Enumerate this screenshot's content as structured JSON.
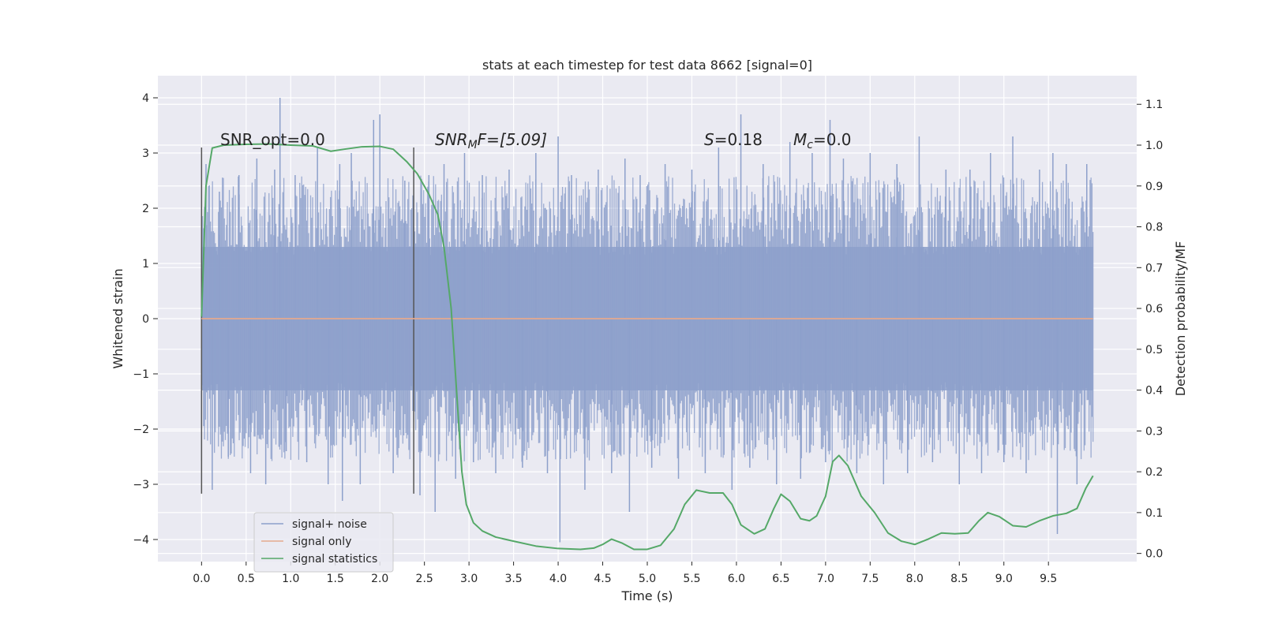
{
  "chart_data": {
    "type": "line",
    "title": "stats at each timestep for test data 8662 [signal=0]",
    "xlabel": "Time (s)",
    "ylabel": "Whitened strain",
    "y2label": "Detection probability/MF",
    "xlim": [
      -0.49,
      10.49
    ],
    "ylim": [
      -4.4,
      4.4
    ],
    "y2lim": [
      -0.02,
      1.17
    ],
    "x_ticks": [
      0.0,
      0.5,
      1.0,
      1.5,
      2.0,
      2.5,
      3.0,
      3.5,
      4.0,
      4.5,
      5.0,
      5.5,
      6.0,
      6.5,
      7.0,
      7.5,
      8.0,
      8.5,
      9.0,
      9.5
    ],
    "x_tick_labels": [
      "0.0",
      "0.5",
      "1.0",
      "1.5",
      "2.0",
      "2.5",
      "3.0",
      "3.5",
      "4.0",
      "4.5",
      "5.0",
      "5.5",
      "6.0",
      "6.5",
      "7.0",
      "7.5",
      "8.0",
      "8.5",
      "9.0",
      "9.5"
    ],
    "y_ticks": [
      4,
      3,
      2,
      1,
      0,
      -1,
      -2,
      -3,
      -4
    ],
    "y_tick_labels": [
      "4",
      "3",
      "2",
      "1",
      "0",
      "−1",
      "−2",
      "−3",
      "−4"
    ],
    "y2_ticks": [
      1.1,
      1.0,
      0.9,
      0.8,
      0.7,
      0.6,
      0.5,
      0.4,
      0.3,
      0.2,
      0.1,
      0.0
    ],
    "y2_tick_labels": [
      "1.1",
      "1.0",
      "0.9",
      "0.8",
      "0.7",
      "0.6",
      "0.5",
      "0.4",
      "0.3",
      "0.2",
      "0.1",
      "0.0"
    ],
    "grid": true,
    "legend_position": "lower-left",
    "annotations": {
      "snr_opt": "SNR_opt=0.0",
      "snr_mf_main": "SNR",
      "snr_mf_sub": "M",
      "snr_mf_rest": "F=[5.09]",
      "s_var": "S",
      "s_rest": "=0.18",
      "mc_var": "M",
      "mc_sub": "c",
      "mc_rest": "=0.0"
    },
    "vertical_markers": [
      0.0,
      2.38
    ],
    "noise_envelope": {
      "x_range": [
        0.0,
        10.0
      ],
      "typical_range": [
        -1.3,
        1.3
      ],
      "max": 4.0,
      "min": -4.05
    },
    "series": [
      {
        "name": "signal+ noise",
        "color": "#8da0cb",
        "axis": "left",
        "spikes": [
          [
            0.05,
            2.8
          ],
          [
            0.12,
            -3.1
          ],
          [
            0.2,
            2.3
          ],
          [
            0.3,
            -2.5
          ],
          [
            0.42,
            2.6
          ],
          [
            0.55,
            -2.8
          ],
          [
            0.62,
            2.9
          ],
          [
            0.72,
            -3.0
          ],
          [
            0.82,
            2.7
          ],
          [
            0.88,
            4.0
          ],
          [
            0.95,
            -2.4
          ],
          [
            1.05,
            2.6
          ],
          [
            1.18,
            -2.6
          ],
          [
            1.3,
            3.1
          ],
          [
            1.42,
            -3.0
          ],
          [
            1.55,
            2.8
          ],
          [
            1.58,
            -3.3
          ],
          [
            1.68,
            3.0
          ],
          [
            1.78,
            -3.0
          ],
          [
            1.93,
            3.6
          ],
          [
            2.0,
            3.7
          ],
          [
            2.15,
            -2.8
          ],
          [
            2.28,
            2.5
          ],
          [
            2.45,
            -3.2
          ],
          [
            2.55,
            2.6
          ],
          [
            2.62,
            -3.5
          ],
          [
            2.72,
            2.8
          ],
          [
            2.85,
            -2.9
          ],
          [
            2.95,
            3.0
          ],
          [
            3.05,
            -2.6
          ],
          [
            3.15,
            2.6
          ],
          [
            3.3,
            -2.8
          ],
          [
            3.45,
            2.7
          ],
          [
            3.6,
            -2.7
          ],
          [
            3.75,
            3.0
          ],
          [
            3.88,
            -2.8
          ],
          [
            4.0,
            3.3
          ],
          [
            4.02,
            -4.05
          ],
          [
            4.15,
            2.6
          ],
          [
            4.3,
            -3.1
          ],
          [
            4.45,
            2.7
          ],
          [
            4.6,
            -2.8
          ],
          [
            4.75,
            2.9
          ],
          [
            4.8,
            -3.5
          ],
          [
            4.92,
            2.6
          ],
          [
            5.05,
            -2.7
          ],
          [
            5.2,
            2.8
          ],
          [
            5.35,
            -2.9
          ],
          [
            5.5,
            2.7
          ],
          [
            5.65,
            -2.8
          ],
          [
            5.8,
            3.1
          ],
          [
            5.95,
            -3.1
          ],
          [
            6.05,
            3.7
          ],
          [
            6.15,
            -2.7
          ],
          [
            6.3,
            2.8
          ],
          [
            6.45,
            -3.0
          ],
          [
            6.6,
            3.2
          ],
          [
            6.72,
            -2.9
          ],
          [
            6.85,
            3.0
          ],
          [
            7.0,
            -2.6
          ],
          [
            7.05,
            3.6
          ],
          [
            7.2,
            2.9
          ],
          [
            7.35,
            -2.8
          ],
          [
            7.5,
            3.0
          ],
          [
            7.65,
            -3.0
          ],
          [
            7.8,
            2.8
          ],
          [
            7.92,
            -2.8
          ],
          [
            8.05,
            3.3
          ],
          [
            8.2,
            -2.6
          ],
          [
            8.35,
            2.7
          ],
          [
            8.5,
            -3.0
          ],
          [
            8.62,
            2.7
          ],
          [
            8.75,
            -2.8
          ],
          [
            8.85,
            3.0
          ],
          [
            9.0,
            -2.6
          ],
          [
            9.1,
            3.3
          ],
          [
            9.25,
            -2.8
          ],
          [
            9.4,
            2.7
          ],
          [
            9.55,
            3.0
          ],
          [
            9.6,
            -3.9
          ],
          [
            9.7,
            2.8
          ],
          [
            9.82,
            -3.0
          ],
          [
            9.93,
            2.8
          ]
        ]
      },
      {
        "name": "signal only",
        "color": "#e5a98e",
        "axis": "left",
        "points": [
          [
            0.0,
            0.0
          ],
          [
            10.0,
            0.0
          ]
        ]
      },
      {
        "name": "signal statistics",
        "color": "#55a868",
        "axis": "right",
        "points": [
          [
            0.0,
            0.58
          ],
          [
            0.05,
            0.9
          ],
          [
            0.12,
            0.993
          ],
          [
            0.25,
            1.0
          ],
          [
            0.5,
            1.002
          ],
          [
            0.75,
            1.003
          ],
          [
            1.0,
            1.0
          ],
          [
            1.25,
            0.998
          ],
          [
            1.45,
            0.985
          ],
          [
            1.6,
            0.99
          ],
          [
            1.8,
            0.996
          ],
          [
            2.0,
            0.997
          ],
          [
            2.15,
            0.99
          ],
          [
            2.3,
            0.96
          ],
          [
            2.42,
            0.93
          ],
          [
            2.55,
            0.88
          ],
          [
            2.65,
            0.83
          ],
          [
            2.72,
            0.75
          ],
          [
            2.8,
            0.6
          ],
          [
            2.86,
            0.4
          ],
          [
            2.92,
            0.2
          ],
          [
            2.97,
            0.12
          ],
          [
            3.05,
            0.075
          ],
          [
            3.15,
            0.055
          ],
          [
            3.3,
            0.04
          ],
          [
            3.5,
            0.03
          ],
          [
            3.75,
            0.018
          ],
          [
            4.0,
            0.012
          ],
          [
            4.25,
            0.01
          ],
          [
            4.4,
            0.013
          ],
          [
            4.5,
            0.022
          ],
          [
            4.6,
            0.035
          ],
          [
            4.72,
            0.025
          ],
          [
            4.85,
            0.01
          ],
          [
            5.0,
            0.01
          ],
          [
            5.15,
            0.02
          ],
          [
            5.3,
            0.06
          ],
          [
            5.42,
            0.12
          ],
          [
            5.55,
            0.155
          ],
          [
            5.7,
            0.148
          ],
          [
            5.85,
            0.148
          ],
          [
            5.95,
            0.12
          ],
          [
            6.05,
            0.07
          ],
          [
            6.2,
            0.048
          ],
          [
            6.32,
            0.06
          ],
          [
            6.42,
            0.11
          ],
          [
            6.5,
            0.145
          ],
          [
            6.6,
            0.128
          ],
          [
            6.72,
            0.085
          ],
          [
            6.82,
            0.08
          ],
          [
            6.9,
            0.092
          ],
          [
            7.0,
            0.14
          ],
          [
            7.08,
            0.225
          ],
          [
            7.15,
            0.24
          ],
          [
            7.25,
            0.215
          ],
          [
            7.4,
            0.14
          ],
          [
            7.55,
            0.1
          ],
          [
            7.7,
            0.05
          ],
          [
            7.85,
            0.03
          ],
          [
            8.0,
            0.022
          ],
          [
            8.15,
            0.035
          ],
          [
            8.3,
            0.05
          ],
          [
            8.45,
            0.048
          ],
          [
            8.6,
            0.05
          ],
          [
            8.72,
            0.08
          ],
          [
            8.82,
            0.1
          ],
          [
            8.95,
            0.09
          ],
          [
            9.1,
            0.068
          ],
          [
            9.25,
            0.065
          ],
          [
            9.4,
            0.08
          ],
          [
            9.55,
            0.092
          ],
          [
            9.7,
            0.098
          ],
          [
            9.82,
            0.11
          ],
          [
            9.92,
            0.16
          ],
          [
            10.0,
            0.19
          ]
        ]
      }
    ]
  }
}
